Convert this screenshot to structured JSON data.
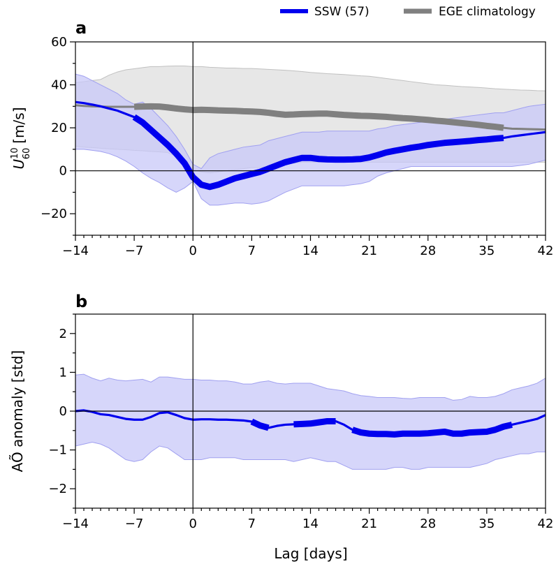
{
  "legend": {
    "items": [
      {
        "label": "SSW (57)",
        "color": "#0000ee"
      },
      {
        "label": "EGE climatology",
        "color": "#808080"
      }
    ]
  },
  "shared": {
    "xlabel": "Lag [days]",
    "xticks": [
      -14,
      -7,
      0,
      7,
      14,
      21,
      28,
      35,
      42
    ],
    "xtick_labels": [
      "−14",
      "−7",
      "0",
      "7",
      "14",
      "21",
      "28",
      "35",
      "42"
    ]
  },
  "colors": {
    "ssw": "#0000ee",
    "ssw_band": "#c8c8f8",
    "ege": "#808080",
    "ege_band": "#e3e3e3"
  },
  "chart_data": [
    {
      "panel": "a",
      "type": "line",
      "ylabel": "U₁⁰₆₀ [m/s]",
      "ylabel_main": "U",
      "ylabel_sup": "10",
      "ylabel_sub": "60",
      "ylabel_unit": "[m/s]",
      "xlim": [
        -14,
        42
      ],
      "ylim": [
        -30,
        60
      ],
      "yticks": [
        -20,
        0,
        20,
        40,
        60
      ],
      "ytick_labels": [
        "−20",
        "0",
        "20",
        "40",
        "60"
      ],
      "x": [
        -14,
        -13,
        -12,
        -11,
        -10,
        -9,
        -8,
        -7,
        -6,
        -5,
        -4,
        -3,
        -2,
        -1,
        0,
        1,
        2,
        3,
        4,
        5,
        6,
        7,
        8,
        9,
        10,
        11,
        12,
        13,
        14,
        15,
        16,
        17,
        18,
        19,
        20,
        21,
        22,
        23,
        24,
        25,
        26,
        27,
        28,
        29,
        30,
        31,
        32,
        33,
        34,
        35,
        36,
        37,
        38,
        39,
        40,
        41,
        42
      ],
      "series": [
        {
          "name": "SSW (57)",
          "values": [
            32,
            31.5,
            30.8,
            30,
            29,
            28,
            26.5,
            25,
            22.5,
            19,
            15.5,
            12,
            8,
            3.5,
            -3,
            -6.5,
            -7.5,
            -6.5,
            -5,
            -3.5,
            -2.5,
            -1.5,
            -0.5,
            1,
            2.5,
            4,
            5,
            6,
            6,
            5.5,
            5.3,
            5.2,
            5.2,
            5.3,
            5.5,
            6.2,
            7.3,
            8.5,
            9.3,
            10,
            10.7,
            11.3,
            12,
            12.5,
            13,
            13.3,
            13.6,
            13.9,
            14.3,
            14.6,
            15,
            15.3,
            16,
            16.5,
            17,
            17.5,
            18
          ],
          "lower": [
            10,
            10,
            9.5,
            9,
            8,
            6.5,
            4.5,
            2,
            -1,
            -3.5,
            -5.5,
            -8,
            -10,
            -8,
            -5,
            -13,
            -16,
            -16,
            -15.5,
            -15,
            -15,
            -15.5,
            -15,
            -14,
            -12,
            -10,
            -8.5,
            -7,
            -7,
            -7,
            -7,
            -7,
            -7,
            -6.5,
            -6,
            -5,
            -2.5,
            -1,
            0,
            1,
            2,
            2,
            2,
            2,
            2,
            2,
            2,
            2,
            2,
            2,
            2,
            2,
            2,
            2.5,
            3,
            4,
            5
          ],
          "upper": [
            45,
            44,
            42,
            40,
            38,
            36,
            33,
            31,
            32,
            29,
            25,
            21,
            16,
            10,
            3,
            1,
            6,
            8,
            9,
            10,
            11,
            11.5,
            12,
            14,
            15,
            16,
            17,
            18,
            18,
            18,
            18.5,
            18.5,
            18.5,
            18.5,
            18.5,
            18.5,
            19.5,
            20,
            21,
            21.5,
            22,
            22.5,
            23,
            23.5,
            24,
            24.5,
            25,
            25.5,
            26,
            26.5,
            27,
            27,
            28,
            29,
            30,
            30.5,
            31
          ],
          "significant_ranges": [
            [
              -7,
              37
            ]
          ]
        },
        {
          "name": "EGE climatology",
          "values": [
            30.5,
            30.2,
            30,
            29.9,
            29.8,
            29.8,
            29.8,
            29.8,
            29.9,
            30,
            29.9,
            29.5,
            29,
            28.6,
            28.3,
            28.4,
            28.3,
            28.1,
            28,
            27.9,
            27.7,
            27.6,
            27.4,
            27.0,
            26.5,
            26.1,
            26.2,
            26.4,
            26.5,
            26.6,
            26.6,
            26.3,
            26.0,
            25.8,
            25.6,
            25.5,
            25.3,
            25.1,
            24.8,
            24.5,
            24.3,
            24.0,
            23.7,
            23.3,
            23.0,
            22.6,
            22.2,
            21.8,
            21.4,
            20.9,
            20.5,
            20.0,
            19.6,
            19.5,
            19.4,
            19.3,
            19.2
          ],
          "lower": [
            11.5,
            11,
            10.8,
            10.5,
            10.2,
            10,
            9.8,
            9.5,
            9.3,
            9.0,
            8.8,
            8.5,
            6.5,
            4.0,
            0.5,
            -0.5,
            -1,
            -0.5,
            0,
            0.5,
            1,
            1.5,
            1.5,
            2,
            2.5,
            3,
            3.5,
            4,
            4,
            4,
            4,
            4,
            4,
            4,
            4,
            4,
            4,
            4,
            4,
            4,
            4,
            4,
            4,
            4,
            4,
            4,
            4,
            4,
            4,
            4,
            4,
            4,
            4,
            4,
            4,
            4,
            4
          ],
          "upper": [
            41,
            41.5,
            42,
            42.5,
            44.5,
            46,
            47,
            47.5,
            48,
            48.5,
            48.5,
            48.7,
            48.8,
            48.8,
            48.5,
            48.5,
            48.2,
            48,
            47.8,
            47.8,
            47.6,
            47.6,
            47.4,
            47.2,
            47,
            46.8,
            46.5,
            46.2,
            45.8,
            45.5,
            45.2,
            45,
            44.8,
            44.5,
            44.2,
            44,
            43.5,
            43,
            42.5,
            42,
            41.5,
            41,
            40.5,
            40,
            39.8,
            39.5,
            39.2,
            39,
            38.8,
            38.5,
            38.2,
            38,
            37.8,
            37.6,
            37.5,
            37.3,
            37.2
          ],
          "significant_ranges": [
            [
              -7,
              37
            ]
          ]
        }
      ]
    },
    {
      "panel": "b",
      "type": "line",
      "ylabel": "AÕ anomaly [std]",
      "xlim": [
        -14,
        42
      ],
      "ylim": [
        -2.5,
        2.5
      ],
      "yticks": [
        -2,
        -1,
        0,
        1,
        2
      ],
      "ytick_labels": [
        "−2",
        "−1",
        "0",
        "1",
        "2"
      ],
      "x": [
        -14,
        -13,
        -12,
        -11,
        -10,
        -9,
        -8,
        -7,
        -6,
        -5,
        -4,
        -3,
        -2,
        -1,
        0,
        1,
        2,
        3,
        4,
        5,
        6,
        7,
        8,
        9,
        10,
        11,
        12,
        13,
        14,
        15,
        16,
        17,
        18,
        19,
        20,
        21,
        22,
        23,
        24,
        25,
        26,
        27,
        28,
        29,
        30,
        31,
        32,
        33,
        34,
        35,
        36,
        37,
        38,
        39,
        40,
        41,
        42
      ],
      "series": [
        {
          "name": "SSW (57)",
          "values": [
            0.0,
            0.02,
            -0.02,
            -0.08,
            -0.1,
            -0.15,
            -0.2,
            -0.22,
            -0.22,
            -0.15,
            -0.05,
            -0.03,
            -0.1,
            -0.18,
            -0.22,
            -0.21,
            -0.21,
            -0.22,
            -0.22,
            -0.23,
            -0.24,
            -0.27,
            -0.37,
            -0.43,
            -0.38,
            -0.35,
            -0.34,
            -0.33,
            -0.32,
            -0.29,
            -0.26,
            -0.26,
            -0.35,
            -0.48,
            -0.55,
            -0.58,
            -0.59,
            -0.59,
            -0.6,
            -0.58,
            -0.58,
            -0.58,
            -0.57,
            -0.55,
            -0.53,
            -0.58,
            -0.58,
            -0.55,
            -0.54,
            -0.53,
            -0.48,
            -0.4,
            -0.35,
            -0.3,
            -0.25,
            -0.2,
            -0.1
          ],
          "lower": [
            -0.9,
            -0.85,
            -0.8,
            -0.85,
            -0.95,
            -1.1,
            -1.25,
            -1.3,
            -1.25,
            -1.05,
            -0.9,
            -0.95,
            -1.1,
            -1.25,
            -1.25,
            -1.25,
            -1.2,
            -1.2,
            -1.2,
            -1.2,
            -1.25,
            -1.25,
            -1.25,
            -1.25,
            -1.25,
            -1.25,
            -1.3,
            -1.25,
            -1.2,
            -1.25,
            -1.3,
            -1.3,
            -1.4,
            -1.5,
            -1.5,
            -1.5,
            -1.5,
            -1.5,
            -1.45,
            -1.45,
            -1.5,
            -1.5,
            -1.45,
            -1.45,
            -1.45,
            -1.45,
            -1.45,
            -1.45,
            -1.4,
            -1.35,
            -1.25,
            -1.2,
            -1.15,
            -1.1,
            -1.1,
            -1.05,
            -1.05
          ],
          "upper": [
            0.93,
            0.95,
            0.85,
            0.78,
            0.85,
            0.8,
            0.78,
            0.8,
            0.82,
            0.75,
            0.88,
            0.88,
            0.85,
            0.82,
            0.82,
            0.8,
            0.8,
            0.78,
            0.78,
            0.75,
            0.7,
            0.7,
            0.75,
            0.78,
            0.72,
            0.7,
            0.72,
            0.72,
            0.72,
            0.65,
            0.58,
            0.55,
            0.52,
            0.45,
            0.4,
            0.38,
            0.35,
            0.35,
            0.35,
            0.33,
            0.32,
            0.35,
            0.35,
            0.35,
            0.35,
            0.28,
            0.3,
            0.38,
            0.35,
            0.35,
            0.38,
            0.45,
            0.55,
            0.6,
            0.65,
            0.72,
            0.85
          ],
          "significant_ranges": [
            [
              7,
              9
            ],
            [
              12,
              17
            ],
            [
              19,
              38
            ]
          ]
        }
      ]
    }
  ]
}
